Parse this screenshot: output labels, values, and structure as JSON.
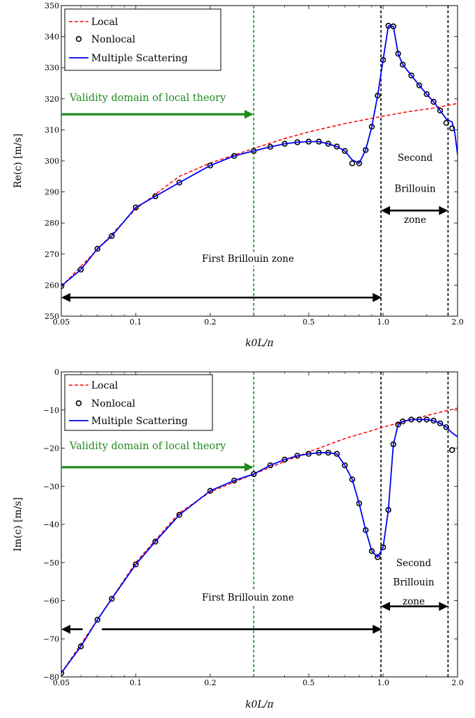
{
  "chart_data": [
    {
      "type": "line",
      "id": "real",
      "ylabel": "Re(c) [m/s]",
      "xlabel": "k0L/π",
      "xscale": "log",
      "xlim": [
        0.05,
        2.0
      ],
      "ylim": [
        250,
        350
      ],
      "xticks": [
        0.05,
        0.1,
        0.2,
        0.5,
        1.0,
        2.0
      ],
      "xtick_labels": [
        "0.05",
        "0.1",
        "0.2",
        "0.5",
        "1.0",
        "2.0"
      ],
      "yticks": [
        250,
        260,
        270,
        280,
        290,
        300,
        310,
        320,
        330,
        340,
        350
      ],
      "ytick_labels": [
        "250",
        "260",
        "270",
        "280",
        "290",
        "300",
        "310",
        "320",
        "330",
        "340",
        "350"
      ],
      "legend": [
        "Local",
        "Nonlocal",
        "Multiple Scattering"
      ],
      "legend_position": "top-left",
      "grid": false,
      "series": [
        {
          "name": "Local",
          "style": "dashed",
          "color": "#ff0000",
          "x": [
            0.05,
            0.07,
            0.1,
            0.15,
            0.2,
            0.3,
            0.4,
            0.5,
            0.7,
            1.0,
            1.3,
            1.6,
            2.0
          ],
          "y": [
            259.5,
            271.5,
            284.5,
            295,
            299.3,
            304,
            307.2,
            309.3,
            312,
            314.4,
            316,
            317,
            318.5
          ]
        },
        {
          "name": "Nonlocal",
          "style": "markers",
          "color": "#000000",
          "x": [
            0.05,
            0.06,
            0.07,
            0.08,
            0.1,
            0.12,
            0.15,
            0.2,
            0.25,
            0.3,
            0.35,
            0.4,
            0.45,
            0.5,
            0.55,
            0.6,
            0.65,
            0.7,
            0.75,
            0.8,
            0.85,
            0.9,
            0.95,
            1.0,
            1.05,
            1.1,
            1.15,
            1.2,
            1.3,
            1.4,
            1.5,
            1.6,
            1.7,
            1.8,
            1.9
          ],
          "y": [
            259.7,
            265,
            271.7,
            275.8,
            285,
            288.6,
            293,
            298.5,
            301.6,
            303.2,
            304.5,
            305.5,
            306,
            306.2,
            306.2,
            305.5,
            304.6,
            303.2,
            299.2,
            299.2,
            303.5,
            311,
            321,
            332.5,
            343.5,
            343.3,
            334.5,
            331,
            327.5,
            324.3,
            321.5,
            319,
            316.2,
            312.2,
            310.5
          ]
        },
        {
          "name": "Multiple Scattering",
          "style": "solid",
          "color": "#0000ee",
          "x": [
            0.05,
            0.06,
            0.07,
            0.08,
            0.1,
            0.12,
            0.15,
            0.2,
            0.25,
            0.3,
            0.35,
            0.4,
            0.45,
            0.5,
            0.55,
            0.6,
            0.65,
            0.7,
            0.75,
            0.8,
            0.85,
            0.9,
            0.95,
            1.0,
            1.05,
            1.1,
            1.15,
            1.2,
            1.3,
            1.4,
            1.5,
            1.6,
            1.7,
            1.8,
            1.9,
            1.95,
            2.0
          ],
          "y": [
            259.7,
            265,
            271.7,
            275.8,
            285,
            288.6,
            293,
            298.5,
            301.6,
            303.2,
            304.5,
            305.5,
            306,
            306.2,
            306.2,
            305.5,
            304.6,
            303.2,
            300.3,
            299.2,
            303.5,
            311,
            321,
            332.5,
            343.5,
            343.3,
            334.5,
            331,
            327.5,
            324.3,
            321.5,
            319,
            316.2,
            313.5,
            312.5,
            309,
            302
          ]
        }
      ],
      "vlines": [
        {
          "x": 0.3,
          "color": "#1e8b1e"
        },
        {
          "x": 0.98,
          "color": "#000000"
        },
        {
          "x": 1.83,
          "color": "#000000"
        }
      ],
      "annotations": {
        "validity_text": "Validity domain of local theory",
        "first_zone_text": "First Brillouin zone",
        "second_zone_lines": [
          "Second",
          "Brillouin",
          "zone"
        ]
      },
      "arrows": {
        "validity": {
          "x0": 0.05,
          "x1": 0.295,
          "y": 315
        },
        "first_zone": {
          "x0": 0.05,
          "x1": 0.975,
          "y": 256
        },
        "second_zone": {
          "x0": 0.98,
          "x1": 1.83,
          "y": 284
        }
      },
      "labels_y": {
        "first_zone": 267.5,
        "second_zone": [
          300,
          290,
          280
        ]
      }
    },
    {
      "type": "line",
      "id": "imag",
      "ylabel": "Im(c) [m/s]",
      "xlabel": "k0L/π",
      "xscale": "log",
      "xlim": [
        0.05,
        2.0
      ],
      "ylim": [
        -80,
        0
      ],
      "xticks": [
        0.05,
        0.1,
        0.2,
        0.5,
        1.0,
        2.0
      ],
      "xtick_labels": [
        "0.05",
        "0.1",
        "0.2",
        "0.5",
        "1.0",
        "2.0"
      ],
      "yticks": [
        -80,
        -70,
        -60,
        -50,
        -40,
        -30,
        -20,
        -10,
        0
      ],
      "ytick_labels": [
        "−80",
        "−70",
        "−60",
        "−50",
        "−40",
        "−30",
        "−20",
        "−10",
        "0"
      ],
      "legend": [
        "Local",
        "Nonlocal",
        "Multiple Scattering"
      ],
      "legend_position": "top-left",
      "grid": false,
      "series": [
        {
          "name": "Local",
          "style": "dashed",
          "color": "#ff0000",
          "x": [
            0.05,
            0.07,
            0.1,
            0.15,
            0.2,
            0.3,
            0.4,
            0.5,
            0.7,
            1.0,
            1.3,
            1.6,
            2.0
          ],
          "y": [
            -79,
            -65,
            -50,
            -37,
            -31.5,
            -26.8,
            -23.5,
            -21,
            -17.5,
            -14.5,
            -12.5,
            -11,
            -9.5
          ]
        },
        {
          "name": "Nonlocal",
          "style": "markers",
          "color": "#000000",
          "x": [
            0.05,
            0.06,
            0.07,
            0.08,
            0.1,
            0.12,
            0.15,
            0.2,
            0.25,
            0.3,
            0.35,
            0.4,
            0.45,
            0.5,
            0.55,
            0.6,
            0.65,
            0.7,
            0.75,
            0.8,
            0.85,
            0.9,
            0.95,
            1.0,
            1.05,
            1.1,
            1.15,
            1.2,
            1.3,
            1.4,
            1.5,
            1.6,
            1.7,
            1.8,
            1.9
          ],
          "y": [
            -79,
            -72,
            -65,
            -59.5,
            -50.5,
            -44.5,
            -37.5,
            -31.2,
            -28.5,
            -26.8,
            -24.5,
            -23,
            -22,
            -21.5,
            -21.2,
            -21.2,
            -21.5,
            -24.5,
            -28.2,
            -34.5,
            -41.5,
            -47,
            -48.6,
            -46,
            -36.2,
            -19,
            -13.8,
            -13,
            -12.5,
            -12.5,
            -12.5,
            -12.8,
            -13.5,
            -14.5,
            -20.5
          ]
        },
        {
          "name": "Multiple Scattering",
          "style": "solid",
          "color": "#0000ee",
          "x": [
            0.05,
            0.06,
            0.07,
            0.08,
            0.1,
            0.12,
            0.15,
            0.2,
            0.25,
            0.3,
            0.35,
            0.4,
            0.45,
            0.5,
            0.55,
            0.6,
            0.65,
            0.7,
            0.75,
            0.8,
            0.85,
            0.9,
            0.95,
            1.0,
            1.05,
            1.1,
            1.15,
            1.2,
            1.3,
            1.4,
            1.5,
            1.6,
            1.7,
            1.8,
            1.9,
            2.0
          ],
          "y": [
            -79,
            -72,
            -65,
            -59.5,
            -50.5,
            -44.5,
            -37.5,
            -31.2,
            -28.5,
            -26.8,
            -24.5,
            -23,
            -22,
            -21.5,
            -21.2,
            -21.2,
            -21.5,
            -24.5,
            -28.2,
            -34.5,
            -41.5,
            -47,
            -48.6,
            -46,
            -36.2,
            -19,
            -13.8,
            -13,
            -12.5,
            -12.5,
            -12.5,
            -12.8,
            -13.5,
            -14.5,
            -16,
            -17
          ]
        }
      ],
      "vlines": [
        {
          "x": 0.3,
          "color": "#1e8b1e"
        },
        {
          "x": 0.98,
          "color": "#000000"
        },
        {
          "x": 1.83,
          "color": "#000000"
        }
      ],
      "annotations": {
        "validity_text": "Validity domain of local theory",
        "first_zone_text": "First Brillouin zone",
        "second_zone_lines": [
          "Second",
          "Brillouin",
          "zone"
        ]
      },
      "arrows": {
        "validity": {
          "x0": 0.05,
          "x1": 0.295,
          "y": -25
        },
        "first_zone_left": {
          "x0": 0.05,
          "x1": 0.061,
          "y": -67.5
        },
        "first_zone": {
          "x0": 0.072,
          "x1": 0.975,
          "y": -67.5
        },
        "second_zone": {
          "x0": 0.98,
          "x1": 1.83,
          "y": -61.5
        }
      },
      "labels_y": {
        "first_zone": -60,
        "second_zone": [
          -51,
          -56,
          -61
        ]
      }
    }
  ]
}
